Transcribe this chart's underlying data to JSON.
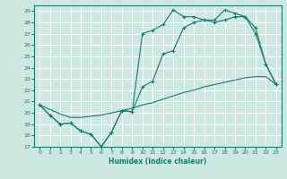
{
  "xlabel": "Humidex (Indice chaleur)",
  "bg_color": "#cce8e0",
  "line_color": "#1a7a6e",
  "grid_color": "#ffffff",
  "xlim": [
    -0.5,
    23.5
  ],
  "ylim": [
    17,
    29.5
  ],
  "yticks": [
    17,
    18,
    19,
    20,
    21,
    22,
    23,
    24,
    25,
    26,
    27,
    28,
    29
  ],
  "xticks": [
    0,
    1,
    2,
    3,
    4,
    5,
    6,
    7,
    8,
    9,
    10,
    11,
    12,
    13,
    14,
    15,
    16,
    17,
    18,
    19,
    20,
    21,
    22,
    23
  ],
  "line1_x": [
    0,
    1,
    2,
    3,
    4,
    5,
    6,
    7,
    8,
    9,
    10,
    11,
    12,
    13,
    14,
    15,
    16,
    17,
    18,
    19,
    20,
    21,
    22,
    23
  ],
  "line1_y": [
    20.7,
    19.8,
    19.0,
    19.1,
    18.4,
    18.1,
    17.0,
    18.3,
    20.2,
    20.1,
    27.0,
    27.3,
    27.8,
    29.1,
    28.5,
    28.5,
    28.2,
    28.2,
    29.1,
    28.8,
    28.5,
    27.5,
    24.3,
    22.5
  ],
  "line2_x": [
    0,
    1,
    2,
    3,
    4,
    5,
    6,
    7,
    8,
    9,
    10,
    11,
    12,
    13,
    14,
    15,
    16,
    17,
    18,
    19,
    20,
    21,
    22,
    23
  ],
  "line2_y": [
    20.7,
    19.8,
    19.0,
    19.1,
    18.4,
    18.1,
    17.0,
    18.3,
    20.2,
    20.1,
    22.3,
    22.8,
    25.2,
    25.5,
    27.5,
    28.0,
    28.2,
    28.0,
    28.2,
    28.5,
    28.5,
    27.0,
    24.3,
    22.5
  ],
  "line3_x": [
    0,
    1,
    2,
    3,
    4,
    5,
    6,
    7,
    8,
    9,
    10,
    11,
    12,
    13,
    14,
    15,
    16,
    17,
    18,
    19,
    20,
    21,
    22,
    23
  ],
  "line3_y": [
    20.7,
    20.3,
    19.9,
    19.6,
    19.6,
    19.7,
    19.8,
    20.0,
    20.2,
    20.4,
    20.7,
    20.9,
    21.2,
    21.5,
    21.8,
    22.0,
    22.3,
    22.5,
    22.7,
    22.9,
    23.1,
    23.2,
    23.2,
    22.5
  ]
}
